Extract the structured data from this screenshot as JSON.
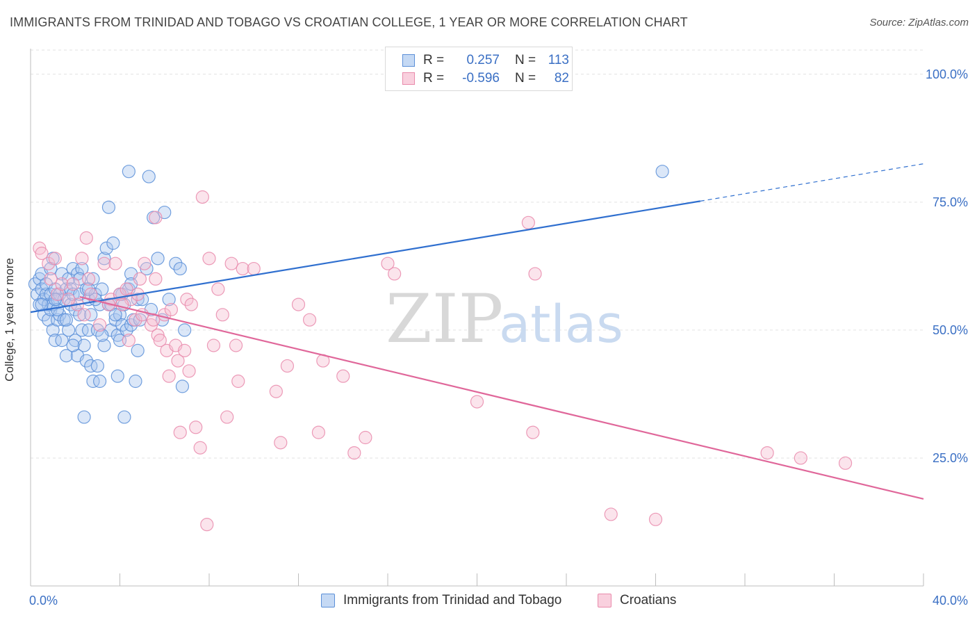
{
  "title": "IMMIGRANTS FROM TRINIDAD AND TOBAGO VS CROATIAN COLLEGE, 1 YEAR OR MORE CORRELATION CHART",
  "source": "Source: ZipAtlas.com",
  "watermark": {
    "zip": "ZIP",
    "atlas": "atlas"
  },
  "legend": {
    "r_label": "R =",
    "n_label": "N =",
    "rows": [
      {
        "r": "0.257",
        "n": "113"
      },
      {
        "r": "-0.596",
        "n": "82"
      }
    ]
  },
  "colors": {
    "blue_fill": "#a9c6ef",
    "blue_stroke": "#5b8fd8",
    "blue_line": "#2f6fcf",
    "pink_fill": "#f6bfd1",
    "pink_stroke": "#e98aab",
    "pink_line": "#e0679a",
    "tick_text": "#3a6fc4",
    "grid": "#e2e2e2"
  },
  "chart_data": {
    "type": "scatter",
    "xlabel": "",
    "ylabel": "College, 1 year or more",
    "xlim": [
      0,
      40
    ],
    "ylim": [
      0,
      105
    ],
    "x_tick_labels": [
      {
        "value": 0,
        "label": "0.0%"
      },
      {
        "value": 40,
        "label": "40.0%"
      }
    ],
    "y_tick_labels": [
      {
        "value": 25,
        "label": "25.0%"
      },
      {
        "value": 50,
        "label": "50.0%"
      },
      {
        "value": 75,
        "label": "75.0%"
      },
      {
        "value": 100,
        "label": "100.0%"
      }
    ],
    "grid": true,
    "legend_position": "top-center",
    "series": [
      {
        "name": "Immigrants from Trinidad and Tobago",
        "color": "#5b8fd8",
        "trend": {
          "x": [
            0,
            30
          ],
          "y": [
            53.5,
            75.2
          ],
          "dashed_to": {
            "x": 40,
            "y": 82.5
          }
        },
        "points": [
          [
            0.2,
            59
          ],
          [
            0.3,
            57
          ],
          [
            0.4,
            55
          ],
          [
            0.4,
            60
          ],
          [
            0.5,
            58
          ],
          [
            0.5,
            61
          ],
          [
            0.6,
            56
          ],
          [
            0.6,
            53
          ],
          [
            0.7,
            57
          ],
          [
            0.7,
            59
          ],
          [
            0.8,
            55
          ],
          [
            0.8,
            52
          ],
          [
            0.9,
            57
          ],
          [
            0.9,
            54
          ],
          [
            1.0,
            55
          ],
          [
            1.0,
            50
          ],
          [
            1.0,
            64
          ],
          [
            1.1,
            58
          ],
          [
            1.1,
            48
          ],
          [
            1.2,
            52
          ],
          [
            1.2,
            56
          ],
          [
            1.3,
            57
          ],
          [
            1.3,
            53
          ],
          [
            1.4,
            61
          ],
          [
            1.4,
            48
          ],
          [
            1.5,
            56
          ],
          [
            1.5,
            52
          ],
          [
            1.6,
            58
          ],
          [
            1.6,
            45
          ],
          [
            1.7,
            60
          ],
          [
            1.7,
            50
          ],
          [
            1.8,
            58
          ],
          [
            1.8,
            55
          ],
          [
            1.9,
            62
          ],
          [
            1.9,
            57
          ],
          [
            2.0,
            54
          ],
          [
            2.0,
            48
          ],
          [
            2.1,
            61
          ],
          [
            2.1,
            45
          ],
          [
            2.2,
            57
          ],
          [
            2.2,
            53
          ],
          [
            2.3,
            62
          ],
          [
            2.3,
            50
          ],
          [
            2.4,
            47
          ],
          [
            2.4,
            33
          ],
          [
            2.5,
            58
          ],
          [
            2.5,
            44
          ],
          [
            2.6,
            56
          ],
          [
            2.6,
            50
          ],
          [
            2.7,
            53
          ],
          [
            2.7,
            43
          ],
          [
            2.8,
            60
          ],
          [
            2.8,
            40
          ],
          [
            2.9,
            57
          ],
          [
            3.0,
            50
          ],
          [
            3.0,
            43
          ],
          [
            3.1,
            55
          ],
          [
            3.1,
            40
          ],
          [
            3.2,
            58
          ],
          [
            3.3,
            47
          ],
          [
            3.3,
            64
          ],
          [
            3.4,
            66
          ],
          [
            3.5,
            55
          ],
          [
            3.5,
            74
          ],
          [
            3.6,
            50
          ],
          [
            3.7,
            67
          ],
          [
            3.8,
            52
          ],
          [
            3.9,
            49
          ],
          [
            3.9,
            41
          ],
          [
            4.0,
            48
          ],
          [
            4.0,
            53
          ],
          [
            4.1,
            57
          ],
          [
            4.1,
            51
          ],
          [
            4.2,
            33
          ],
          [
            4.2,
            55
          ],
          [
            4.3,
            50
          ],
          [
            4.4,
            58
          ],
          [
            4.4,
            81
          ],
          [
            4.5,
            61
          ],
          [
            4.5,
            51
          ],
          [
            4.6,
            52
          ],
          [
            4.7,
            40
          ],
          [
            4.8,
            46
          ],
          [
            4.9,
            52
          ],
          [
            4.5,
            59
          ],
          [
            4.8,
            56
          ],
          [
            4.0,
            57
          ],
          [
            3.6,
            55
          ],
          [
            2.2,
            60
          ],
          [
            1.2,
            54
          ],
          [
            0.5,
            55
          ],
          [
            1.6,
            52
          ],
          [
            2.9,
            56
          ],
          [
            3.2,
            49
          ],
          [
            5.0,
            56
          ],
          [
            5.2,
            62
          ],
          [
            5.3,
            80
          ],
          [
            5.4,
            54
          ],
          [
            5.5,
            72
          ],
          [
            5.7,
            64
          ],
          [
            5.9,
            52
          ],
          [
            6.0,
            73
          ],
          [
            6.2,
            56
          ],
          [
            6.5,
            63
          ],
          [
            6.7,
            62
          ],
          [
            6.8,
            39
          ],
          [
            6.9,
            50
          ],
          [
            3.8,
            53
          ],
          [
            2.6,
            58
          ],
          [
            1.9,
            47
          ],
          [
            1.1,
            56
          ],
          [
            0.9,
            62
          ],
          [
            28.3,
            81
          ]
        ]
      },
      {
        "name": "Croatians",
        "color": "#e98aab",
        "trend": {
          "x": [
            2.2,
            40
          ],
          "y": [
            56.5,
            17
          ]
        },
        "points": [
          [
            0.4,
            66
          ],
          [
            0.5,
            65
          ],
          [
            0.8,
            63
          ],
          [
            1.1,
            64
          ],
          [
            1.2,
            57
          ],
          [
            1.4,
            59
          ],
          [
            1.9,
            59
          ],
          [
            2.1,
            55
          ],
          [
            2.3,
            64
          ],
          [
            2.4,
            53
          ],
          [
            2.5,
            68
          ],
          [
            2.6,
            60
          ],
          [
            3.1,
            51
          ],
          [
            3.3,
            63
          ],
          [
            3.6,
            56
          ],
          [
            3.8,
            63
          ],
          [
            4.0,
            57
          ],
          [
            4.3,
            58
          ],
          [
            4.4,
            48
          ],
          [
            4.5,
            56
          ],
          [
            4.7,
            52
          ],
          [
            4.8,
            57
          ],
          [
            4.9,
            60
          ],
          [
            5.0,
            53
          ],
          [
            5.1,
            63
          ],
          [
            5.4,
            51
          ],
          [
            5.5,
            52
          ],
          [
            5.6,
            60
          ],
          [
            5.6,
            72
          ],
          [
            5.7,
            49
          ],
          [
            5.8,
            48
          ],
          [
            6.0,
            53
          ],
          [
            6.1,
            46
          ],
          [
            6.2,
            41
          ],
          [
            6.3,
            54
          ],
          [
            6.5,
            47
          ],
          [
            6.6,
            44
          ],
          [
            6.7,
            30
          ],
          [
            6.9,
            46
          ],
          [
            7.0,
            56
          ],
          [
            7.1,
            42
          ],
          [
            7.2,
            55
          ],
          [
            7.4,
            31
          ],
          [
            7.6,
            27
          ],
          [
            7.7,
            76
          ],
          [
            7.9,
            12
          ],
          [
            8.0,
            64
          ],
          [
            8.2,
            47
          ],
          [
            8.4,
            58
          ],
          [
            8.6,
            53
          ],
          [
            8.8,
            33
          ],
          [
            9.0,
            63
          ],
          [
            9.2,
            47
          ],
          [
            9.3,
            40
          ],
          [
            9.5,
            62
          ],
          [
            10.0,
            62
          ],
          [
            11.0,
            38
          ],
          [
            11.2,
            28
          ],
          [
            11.5,
            43
          ],
          [
            12.0,
            55
          ],
          [
            12.5,
            52
          ],
          [
            12.9,
            30
          ],
          [
            13.1,
            44
          ],
          [
            14.0,
            41
          ],
          [
            14.5,
            26
          ],
          [
            15.0,
            29
          ],
          [
            16.0,
            63
          ],
          [
            16.3,
            61
          ],
          [
            20.0,
            36
          ],
          [
            22.5,
            30
          ],
          [
            22.3,
            71
          ],
          [
            22.6,
            61
          ],
          [
            26.0,
            14
          ],
          [
            28.0,
            13
          ],
          [
            33.0,
            26
          ],
          [
            34.5,
            25
          ],
          [
            36.5,
            24
          ],
          [
            2.7,
            57
          ],
          [
            3.5,
            55
          ],
          [
            4.1,
            55
          ],
          [
            1.7,
            56
          ],
          [
            0.9,
            60
          ]
        ]
      }
    ]
  }
}
